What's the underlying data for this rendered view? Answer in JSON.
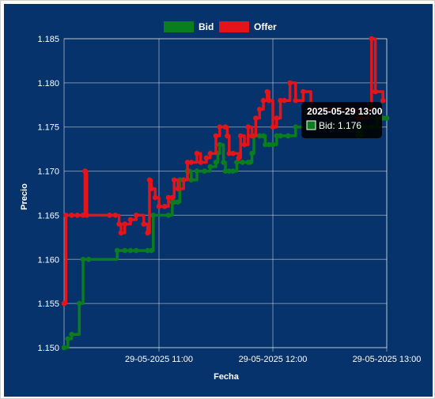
{
  "chart_data": {
    "type": "line",
    "xlabel": "Fecha",
    "ylabel": "Precio",
    "ylim": [
      1.15,
      1.185
    ],
    "yticks": [
      "1.150",
      "1.155",
      "1.160",
      "1.165",
      "1.170",
      "1.175",
      "1.180",
      "1.185"
    ],
    "xlim": [
      "2025-05-29 10:10",
      "2025-05-29 13:00"
    ],
    "xticks": [
      {
        "label": "29-05-2025 11:00",
        "t": "2025-05-29 11:00"
      },
      {
        "label": "29-05-2025 12:00",
        "t": "2025-05-29 12:00"
      },
      {
        "label": "29-05-2025 13:00",
        "t": "2025-05-29 13:00"
      }
    ],
    "grid": true,
    "legend_position": "top",
    "background": "#06336b",
    "series": [
      {
        "name": "Bid",
        "color": "#0a7d1e",
        "points": [
          [
            "10:10",
            1.15
          ],
          [
            "10:12",
            1.151
          ],
          [
            "10:14",
            1.1515
          ],
          [
            "10:18",
            1.155
          ],
          [
            "10:20",
            1.16
          ],
          [
            "10:23",
            1.16
          ],
          [
            "10:38",
            1.161
          ],
          [
            "10:42",
            1.161
          ],
          [
            "10:45",
            1.161
          ],
          [
            "10:48",
            1.161
          ],
          [
            "10:54",
            1.161
          ],
          [
            "10:56",
            1.161
          ],
          [
            "10:57",
            1.165
          ],
          [
            "11:05",
            1.165
          ],
          [
            "11:07",
            1.1665
          ],
          [
            "11:08",
            1.1665
          ],
          [
            "11:10",
            1.1665
          ],
          [
            "11:11",
            1.169
          ],
          [
            "11:13",
            1.169
          ],
          [
            "11:15",
            1.17
          ],
          [
            "11:16",
            1.17
          ],
          [
            "11:17",
            1.169
          ],
          [
            "11:20",
            1.17
          ],
          [
            "11:24",
            1.17
          ],
          [
            "11:27",
            1.1705
          ],
          [
            "11:30",
            1.171
          ],
          [
            "11:31",
            1.172
          ],
          [
            "11:32",
            1.173
          ],
          [
            "11:34",
            1.171
          ],
          [
            "11:35",
            1.17
          ],
          [
            "11:37",
            1.17
          ],
          [
            "11:39",
            1.17
          ],
          [
            "11:41",
            1.171
          ],
          [
            "11:44",
            1.171
          ],
          [
            "11:47",
            1.171
          ],
          [
            "11:48",
            1.171
          ],
          [
            "11:49",
            1.172
          ],
          [
            "11:50",
            1.174
          ],
          [
            "11:53",
            1.174
          ],
          [
            "11:55",
            1.174
          ],
          [
            "11:56",
            1.173
          ],
          [
            "11:58",
            1.173
          ],
          [
            "12:00",
            1.173
          ],
          [
            "12:02",
            1.174
          ],
          [
            "12:04",
            1.174
          ],
          [
            "12:08",
            1.174
          ],
          [
            "12:12",
            1.175
          ],
          [
            "12:20",
            1.175
          ],
          [
            "12:30",
            1.175
          ],
          [
            "12:40",
            1.175
          ],
          [
            "12:45",
            1.174
          ],
          [
            "12:47",
            1.175
          ],
          [
            "12:52",
            1.175
          ],
          [
            "12:55",
            1.176
          ],
          [
            "12:58",
            1.176
          ],
          [
            "13:00",
            1.176
          ]
        ]
      },
      {
        "name": "Offer",
        "color": "#e3151a",
        "points": [
          [
            "10:10",
            1.155
          ],
          [
            "10:11",
            1.165
          ],
          [
            "10:14",
            1.165
          ],
          [
            "10:17",
            1.165
          ],
          [
            "10:20",
            1.165
          ],
          [
            "10:21",
            1.17
          ],
          [
            "10:22",
            1.165
          ],
          [
            "10:34",
            1.165
          ],
          [
            "10:37",
            1.165
          ],
          [
            "10:39",
            1.164
          ],
          [
            "10:40",
            1.163
          ],
          [
            "10:42",
            1.164
          ],
          [
            "10:45",
            1.1645
          ],
          [
            "10:48",
            1.165
          ],
          [
            "10:52",
            1.164
          ],
          [
            "10:54",
            1.163
          ],
          [
            "10:55",
            1.169
          ],
          [
            "10:56",
            1.168
          ],
          [
            "10:58",
            1.167
          ],
          [
            "11:00",
            1.166
          ],
          [
            "11:03",
            1.166
          ],
          [
            "11:05",
            1.167
          ],
          [
            "11:07",
            1.167
          ],
          [
            "11:08",
            1.169
          ],
          [
            "11:10",
            1.168
          ],
          [
            "11:13",
            1.169
          ],
          [
            "11:15",
            1.171
          ],
          [
            "11:17",
            1.171
          ],
          [
            "11:20",
            1.172
          ],
          [
            "11:22",
            1.171
          ],
          [
            "11:25",
            1.1715
          ],
          [
            "11:27",
            1.172
          ],
          [
            "11:30",
            1.174
          ],
          [
            "11:32",
            1.175
          ],
          [
            "11:35",
            1.175
          ],
          [
            "11:36",
            1.174
          ],
          [
            "11:37",
            1.172
          ],
          [
            "11:39",
            1.172
          ],
          [
            "11:42",
            1.1715
          ],
          [
            "11:43",
            1.174
          ],
          [
            "11:45",
            1.173
          ],
          [
            "11:47",
            1.175
          ],
          [
            "11:49",
            1.174
          ],
          [
            "11:51",
            1.176
          ],
          [
            "11:53",
            1.177
          ],
          [
            "11:55",
            1.178
          ],
          [
            "11:57",
            1.179
          ],
          [
            "11:58",
            1.178
          ],
          [
            "12:00",
            1.175
          ],
          [
            "12:02",
            1.176
          ],
          [
            "12:04",
            1.178
          ],
          [
            "12:06",
            1.178
          ],
          [
            "12:09",
            1.18
          ],
          [
            "12:12",
            1.178
          ],
          [
            "12:16",
            1.179
          ],
          [
            "12:20",
            1.177
          ],
          [
            "12:30",
            1.177
          ],
          [
            "12:40",
            1.177
          ],
          [
            "12:45",
            1.176
          ],
          [
            "12:50",
            1.177
          ],
          [
            "12:52",
            1.185
          ],
          [
            "12:54",
            1.179
          ],
          [
            "12:58",
            1.178
          ]
        ]
      }
    ],
    "tooltip": {
      "title": "2025-05-29 13:00",
      "series": "Bid",
      "value": "1.176",
      "text": "Bid: 1.176"
    }
  }
}
